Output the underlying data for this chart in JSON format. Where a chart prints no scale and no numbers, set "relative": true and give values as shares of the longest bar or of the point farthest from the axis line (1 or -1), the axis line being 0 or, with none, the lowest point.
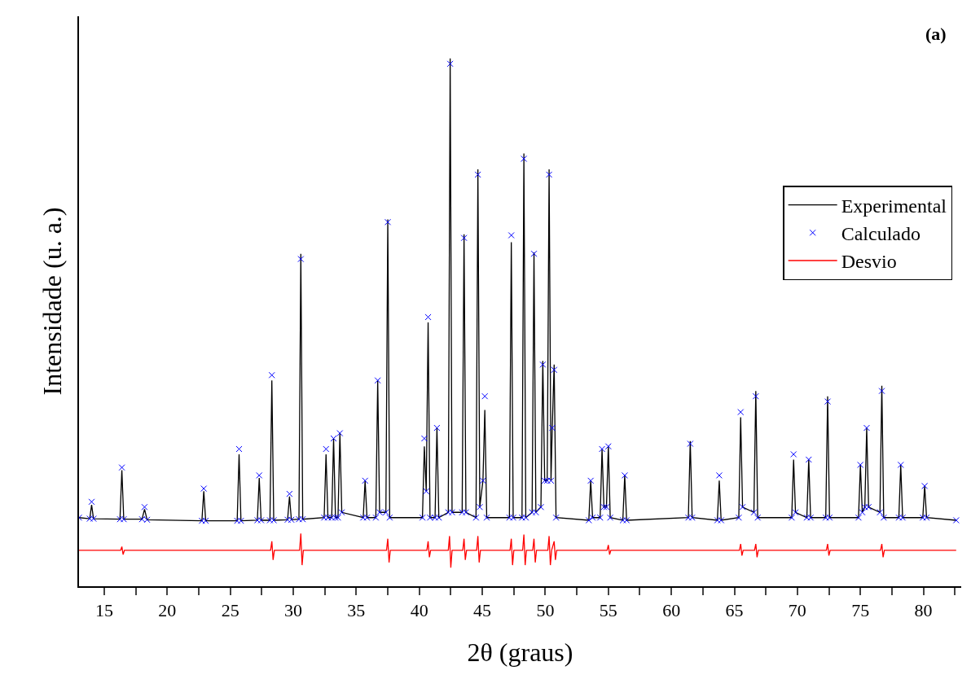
{
  "chart_data": {
    "type": "line",
    "relative": true,
    "xlabel": "2θ (graus)",
    "ylabel": "Intensidade (u. a.)",
    "annotations": [
      "(a)"
    ],
    "xlim": [
      13,
      83
    ],
    "xticks": [
      15,
      {
        "value": 17.5,
        "label": null
      },
      20,
      {
        "value": 22.5,
        "label": null
      },
      25,
      {
        "value": 27.5,
        "label": null
      },
      30,
      {
        "value": 32.5,
        "label": null
      },
      35,
      {
        "value": 37.5,
        "label": null
      },
      40,
      {
        "value": 42.5,
        "label": null
      },
      45,
      {
        "value": 47.5,
        "label": null
      },
      50,
      {
        "value": 52.5,
        "label": null
      },
      55,
      {
        "value": 57.5,
        "label": null
      },
      60,
      {
        "value": 62.5,
        "label": null
      },
      65,
      {
        "value": 67.5,
        "label": null
      },
      70,
      {
        "value": 72.5,
        "label": null
      },
      75,
      {
        "value": 77.5,
        "label": null
      },
      80,
      {
        "value": 82.5,
        "label": null
      }
    ],
    "tick_labels": "x",
    "legend": "right",
    "x": [
      13.0,
      13.85,
      14.0,
      14.15,
      16.25,
      16.4,
      16.55,
      18.0,
      18.2,
      18.4,
      22.75,
      22.9,
      23.05,
      25.55,
      25.7,
      25.85,
      27.15,
      27.3,
      27.45,
      28.15,
      28.3,
      28.45,
      29.55,
      29.7,
      29.85,
      30.45,
      30.6,
      30.75,
      32.45,
      32.6,
      32.75,
      33.05,
      33.2,
      33.35,
      33.55,
      33.7,
      33.85,
      35.55,
      35.7,
      35.85,
      36.55,
      36.7,
      36.85,
      37.35,
      37.5,
      37.65,
      40.25,
      40.4,
      40.55,
      40.7,
      40.85,
      41.25,
      41.4,
      41.55,
      42.3,
      42.45,
      42.6,
      43.4,
      43.55,
      43.7,
      44.5,
      44.65,
      44.8,
      45.05,
      45.2,
      45.35,
      47.15,
      47.3,
      47.45,
      48.15,
      48.3,
      48.45,
      48.95,
      49.1,
      49.25,
      49.65,
      49.8,
      49.95,
      50.15,
      50.3,
      50.45,
      50.55,
      50.7,
      50.85,
      53.45,
      53.6,
      53.75,
      54.35,
      54.5,
      54.65,
      54.85,
      55.0,
      55.15,
      56.15,
      56.3,
      56.45,
      61.35,
      61.5,
      61.65,
      63.65,
      63.8,
      63.95,
      65.35,
      65.5,
      65.65,
      66.55,
      66.7,
      66.85,
      69.55,
      69.7,
      69.85,
      70.75,
      70.9,
      71.05,
      72.25,
      72.4,
      72.55,
      74.85,
      75.0,
      75.15,
      75.35,
      75.5,
      75.65,
      76.55,
      76.7,
      76.85,
      78.05,
      78.2,
      78.35,
      79.95,
      80.1,
      80.25,
      82.6
    ],
    "series": [
      {
        "name": "Experimental",
        "marker": "none",
        "line_style": "solid",
        "color": "#000000",
        "values": [
          0.13,
          0.128,
          0.154,
          0.128,
          0.127,
          0.22,
          0.127,
          0.127,
          0.146,
          0.126,
          0.124,
          0.18,
          0.124,
          0.124,
          0.25,
          0.124,
          0.125,
          0.205,
          0.125,
          0.125,
          0.39,
          0.125,
          0.126,
          0.17,
          0.126,
          0.127,
          0.63,
          0.127,
          0.13,
          0.25,
          0.13,
          0.13,
          0.28,
          0.13,
          0.13,
          0.29,
          0.14,
          0.13,
          0.2,
          0.13,
          0.13,
          0.39,
          0.14,
          0.14,
          0.695,
          0.13,
          0.13,
          0.265,
          0.18,
          0.5,
          0.13,
          0.13,
          0.3,
          0.13,
          0.14,
          1.0,
          0.14,
          0.14,
          0.667,
          0.14,
          0.13,
          0.79,
          0.15,
          0.2,
          0.334,
          0.13,
          0.13,
          0.652,
          0.13,
          0.13,
          0.82,
          0.13,
          0.14,
          0.632,
          0.14,
          0.15,
          0.427,
          0.2,
          0.2,
          0.79,
          0.2,
          0.3,
          0.42,
          0.13,
          0.125,
          0.2,
          0.13,
          0.13,
          0.26,
          0.15,
          0.15,
          0.265,
          0.13,
          0.125,
          0.21,
          0.125,
          0.13,
          0.275,
          0.13,
          0.125,
          0.2,
          0.125,
          0.13,
          0.32,
          0.15,
          0.14,
          0.37,
          0.13,
          0.13,
          0.24,
          0.14,
          0.13,
          0.24,
          0.13,
          0.13,
          0.36,
          0.13,
          0.13,
          0.23,
          0.14,
          0.15,
          0.3,
          0.15,
          0.14,
          0.38,
          0.13,
          0.13,
          0.23,
          0.13,
          0.13,
          0.19,
          0.13,
          0.125
        ]
      },
      {
        "name": "Calculado",
        "type": "scatter",
        "marker": "cross",
        "color": "#0000ff",
        "values": [
          0.13,
          0.128,
          0.16,
          0.128,
          0.127,
          0.225,
          0.127,
          0.127,
          0.15,
          0.126,
          0.124,
          0.185,
          0.124,
          0.124,
          0.26,
          0.124,
          0.125,
          0.21,
          0.125,
          0.125,
          0.4,
          0.125,
          0.126,
          0.175,
          0.126,
          0.127,
          0.62,
          0.127,
          0.13,
          0.26,
          0.13,
          0.13,
          0.28,
          0.13,
          0.13,
          0.29,
          0.14,
          0.13,
          0.2,
          0.13,
          0.13,
          0.39,
          0.14,
          0.14,
          0.69,
          0.13,
          0.13,
          0.28,
          0.18,
          0.51,
          0.13,
          0.13,
          0.3,
          0.13,
          0.14,
          0.99,
          0.14,
          0.14,
          0.66,
          0.14,
          0.13,
          0.78,
          0.15,
          0.2,
          0.36,
          0.13,
          0.13,
          0.665,
          0.13,
          0.13,
          0.81,
          0.13,
          0.14,
          0.63,
          0.14,
          0.15,
          0.42,
          0.2,
          0.2,
          0.78,
          0.2,
          0.3,
          0.41,
          0.13,
          0.125,
          0.2,
          0.13,
          0.13,
          0.26,
          0.15,
          0.15,
          0.265,
          0.13,
          0.125,
          0.21,
          0.125,
          0.13,
          0.27,
          0.13,
          0.125,
          0.21,
          0.125,
          0.13,
          0.33,
          0.15,
          0.14,
          0.36,
          0.13,
          0.13,
          0.25,
          0.14,
          0.13,
          0.24,
          0.13,
          0.13,
          0.35,
          0.13,
          0.13,
          0.23,
          0.14,
          0.15,
          0.3,
          0.15,
          0.14,
          0.37,
          0.13,
          0.13,
          0.23,
          0.13,
          0.13,
          0.19,
          0.13,
          0.125
        ]
      },
      {
        "name": "Desvio",
        "marker": "none",
        "line_style": "solid",
        "color": "#ff0000",
        "x": [
          13.0,
          16.3,
          16.4,
          16.5,
          16.6,
          28.2,
          28.3,
          28.4,
          28.5,
          30.5,
          30.6,
          30.7,
          30.8,
          37.4,
          37.5,
          37.6,
          37.7,
          40.6,
          40.7,
          40.8,
          40.9,
          42.3,
          42.4,
          42.5,
          42.6,
          43.45,
          43.55,
          43.65,
          43.75,
          44.55,
          44.65,
          44.75,
          44.85,
          47.2,
          47.3,
          47.4,
          47.5,
          48.2,
          48.3,
          48.4,
          48.5,
          49.0,
          49.1,
          49.2,
          49.3,
          50.2,
          50.3,
          50.4,
          50.5,
          50.7,
          50.8,
          50.9,
          54.9,
          55.0,
          55.1,
          55.2,
          65.4,
          65.5,
          65.6,
          65.7,
          66.6,
          66.7,
          66.8,
          66.9,
          72.3,
          72.4,
          72.5,
          72.6,
          76.6,
          76.7,
          76.8,
          76.9,
          82.6
        ],
        "values": [
          0.068,
          0.068,
          0.075,
          0.06,
          0.068,
          0.068,
          0.085,
          0.05,
          0.068,
          0.068,
          0.1,
          0.04,
          0.068,
          0.068,
          0.09,
          0.045,
          0.068,
          0.068,
          0.085,
          0.055,
          0.068,
          0.068,
          0.095,
          0.035,
          0.068,
          0.068,
          0.09,
          0.05,
          0.068,
          0.068,
          0.095,
          0.045,
          0.068,
          0.068,
          0.09,
          0.04,
          0.068,
          0.068,
          0.098,
          0.04,
          0.068,
          0.068,
          0.09,
          0.045,
          0.068,
          0.068,
          0.095,
          0.04,
          0.068,
          0.085,
          0.05,
          0.068,
          0.068,
          0.078,
          0.06,
          0.068,
          0.068,
          0.08,
          0.058,
          0.068,
          0.068,
          0.08,
          0.055,
          0.068,
          0.068,
          0.08,
          0.058,
          0.068,
          0.068,
          0.08,
          0.055,
          0.068,
          0.068
        ]
      }
    ]
  }
}
